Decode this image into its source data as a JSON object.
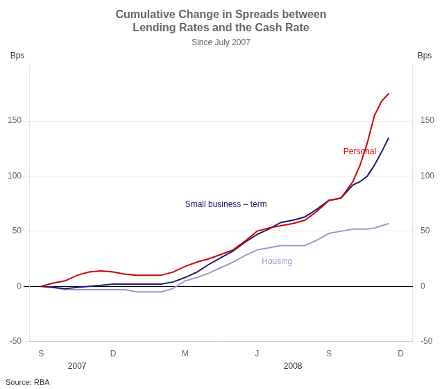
{
  "chart_data": {
    "type": "line",
    "title": [
      "Cumulative Change in Spreads between",
      "Lending Rates and the Cash Rate"
    ],
    "subtitle": "Since July 2007",
    "ylabel": "Bps",
    "y2label": "Bps",
    "source": "Source: RBA",
    "x": [
      0,
      0.5,
      1,
      1.5,
      2,
      2.5,
      3,
      3.5,
      4,
      4.5,
      5,
      5.5,
      6,
      6.5,
      7,
      7.5,
      8,
      8.5,
      9,
      9.5,
      10,
      10.5,
      11,
      11.5,
      12,
      12.5,
      13,
      13.3,
      13.6,
      13.9,
      14.2,
      14.5
    ],
    "xlim": [
      -0.5,
      15.5
    ],
    "xticks": [
      {
        "value": 0,
        "label": "S"
      },
      {
        "value": 3,
        "label": "D"
      },
      {
        "value": 6,
        "label": "M"
      },
      {
        "value": 9,
        "label": "J"
      },
      {
        "value": 12,
        "label": "S"
      },
      {
        "value": 15,
        "label": "D"
      }
    ],
    "ylim": [
      -50,
      200
    ],
    "yticks": [
      -50,
      0,
      50,
      100,
      150
    ],
    "y2lim": [
      -50,
      200
    ],
    "y2ticks": [
      -50,
      0,
      50,
      100,
      150
    ],
    "grid": "y",
    "series": [
      {
        "name": "Personal",
        "color": "#cc0000",
        "values": [
          0,
          3,
          5,
          10,
          13,
          14,
          13,
          11,
          10,
          10,
          10,
          13,
          18,
          22,
          25,
          29,
          33,
          41,
          50,
          53,
          55,
          57,
          60,
          68,
          78,
          80,
          95,
          110,
          130,
          155,
          168,
          175
        ]
      },
      {
        "name": "Small business – term",
        "color": "#1a1a6e",
        "values": [
          0,
          -1,
          -2,
          -1,
          0,
          1,
          2,
          2,
          2,
          2,
          2,
          4,
          8,
          13,
          20,
          26,
          32,
          40,
          47,
          52,
          58,
          60,
          63,
          70,
          78,
          80,
          92,
          95,
          100,
          110,
          122,
          135
        ]
      },
      {
        "name": "Housing",
        "color": "#9999cc",
        "values": [
          0,
          -1,
          -3,
          -3,
          -3,
          -3,
          -3,
          -3,
          -5,
          -5,
          -5,
          -2,
          5,
          8,
          12,
          17,
          22,
          28,
          33,
          35,
          37,
          37,
          37,
          42,
          48,
          50,
          52,
          52,
          52,
          53,
          55,
          57
        ]
      }
    ],
    "annotations": [
      {
        "text": "Small business – term",
        "x": 6.0,
        "y": 72,
        "color": "#1a1a6e"
      },
      {
        "text": "Housing",
        "x": 9.2,
        "y": 20,
        "color": "#9999cc"
      },
      {
        "text": "Personal",
        "x": 12.6,
        "y": 120,
        "color": "#cc0000"
      },
      {
        "text": "2007",
        "x": 1.5
      },
      {
        "text": "2008",
        "x": 10.5
      }
    ]
  }
}
